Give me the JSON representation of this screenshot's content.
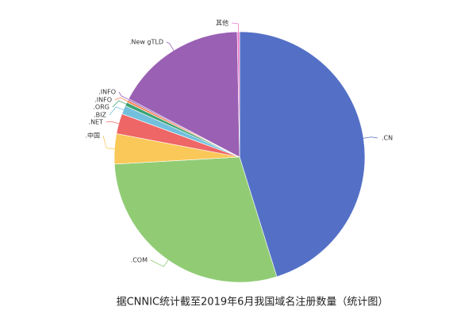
{
  "chart_data": {
    "type": "pie",
    "title": "据CNNIC统计截至2019年6月我国域名注册数量（统计图）",
    "categories": [
      ".CN",
      ".COM",
      ".中国",
      ".NET",
      ".BIZ",
      ".ORG",
      ".INFO",
      ".INFO",
      ".New gTLD",
      "其他"
    ],
    "values": [
      45.2,
      28.9,
      3.9,
      2.6,
      1.1,
      0.5,
      0.3,
      0.2,
      17.0,
      0.3
    ],
    "colors": [
      "#5470c6",
      "#91cc75",
      "#fac858",
      "#ee6666",
      "#73c0de",
      "#3ba272",
      "#fc8452",
      "#9a60b4",
      "#9a60b4",
      "#ea7ccc"
    ]
  }
}
